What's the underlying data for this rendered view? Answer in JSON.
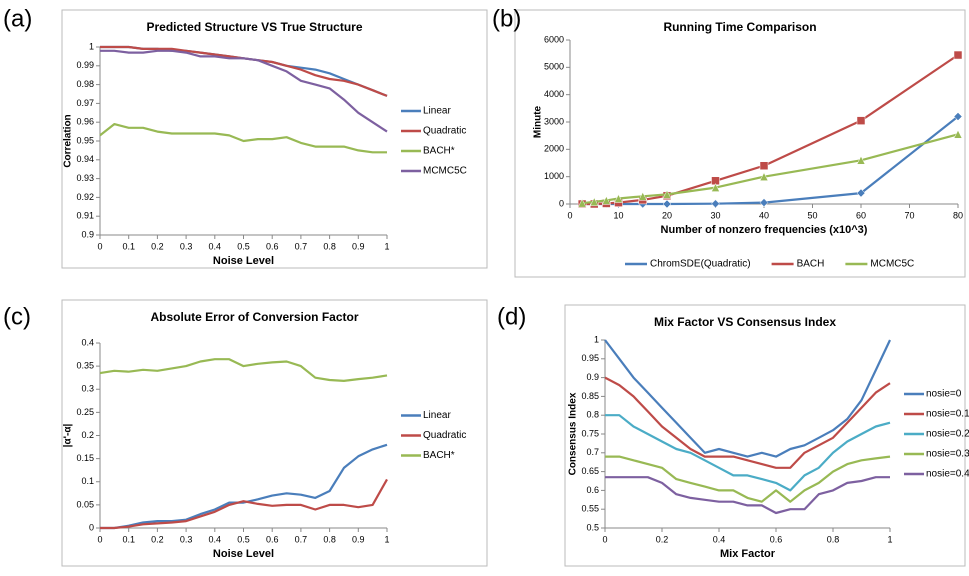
{
  "chart_data": [
    {
      "type": "line",
      "label": "(a)",
      "title": "Predicted Structure VS True Structure",
      "xlabel": "Noise Level",
      "ylabel": "Correlation",
      "legend": "right",
      "x": [
        0,
        0.05,
        0.1,
        0.15,
        0.2,
        0.25,
        0.3,
        0.35,
        0.4,
        0.45,
        0.5,
        0.55,
        0.6,
        0.65,
        0.7,
        0.75,
        0.8,
        0.85,
        0.9,
        0.95,
        1
      ],
      "xlim": [
        0,
        1
      ],
      "ylim": [
        0.9,
        1
      ],
      "xticks": [
        0,
        0.1,
        0.2,
        0.3,
        0.4,
        0.5,
        0.6,
        0.7,
        0.8,
        0.9,
        1
      ],
      "yticks": [
        0.9,
        0.91,
        0.92,
        0.93,
        0.94,
        0.95,
        0.96,
        0.97,
        0.98,
        0.99,
        1
      ],
      "series": [
        {
          "name": "Linear",
          "color": "#4a7ebb",
          "values": [
            1,
            1,
            1,
            0.999,
            0.999,
            0.998,
            0.998,
            0.997,
            0.996,
            0.995,
            0.994,
            0.993,
            0.992,
            0.99,
            0.989,
            0.988,
            0.986,
            0.983,
            0.98,
            0.977,
            0.974
          ]
        },
        {
          "name": "Quadratic",
          "color": "#be4b48",
          "values": [
            1,
            1,
            1,
            0.999,
            0.999,
            0.999,
            0.998,
            0.997,
            0.996,
            0.995,
            0.994,
            0.993,
            0.992,
            0.99,
            0.988,
            0.985,
            0.983,
            0.982,
            0.98,
            0.977,
            0.974
          ]
        },
        {
          "name": "BACH*",
          "color": "#98b954",
          "values": [
            0.953,
            0.959,
            0.957,
            0.957,
            0.955,
            0.954,
            0.954,
            0.954,
            0.954,
            0.953,
            0.95,
            0.951,
            0.951,
            0.952,
            0.949,
            0.947,
            0.947,
            0.947,
            0.945,
            0.944,
            0.944
          ]
        },
        {
          "name": "MCMC5C",
          "color": "#7d60a0",
          "values": [
            0.998,
            0.998,
            0.997,
            0.997,
            0.998,
            0.998,
            0.997,
            0.995,
            0.995,
            0.994,
            0.994,
            0.993,
            0.99,
            0.987,
            0.982,
            0.98,
            0.978,
            0.972,
            0.965,
            0.96,
            0.955
          ]
        }
      ]
    },
    {
      "type": "line",
      "label": "(b)",
      "title": "Running Time Comparison",
      "xlabel": "Number of nonzero frequencies (x10^3)",
      "ylabel": "Minute",
      "legend": "bottom",
      "markers": true,
      "x": [
        2.5,
        5,
        7.5,
        10,
        15,
        20,
        30,
        40,
        60,
        80
      ],
      "xlim": [
        0,
        80
      ],
      "ylim": [
        0,
        6000
      ],
      "xticks": [
        0,
        10,
        20,
        30,
        40,
        50,
        60,
        70,
        80
      ],
      "yticks": [
        0,
        1000,
        2000,
        3000,
        4000,
        5000,
        6000
      ],
      "series": [
        {
          "name": "ChromSDE(Quadratic)",
          "color": "#4a7ebb",
          "values": [
            0,
            0,
            0,
            0,
            0,
            0,
            10,
            50,
            400,
            3200
          ]
        },
        {
          "name": "BACH",
          "color": "#be4b48",
          "values": [
            0,
            0,
            20,
            50,
            150,
            300,
            850,
            1400,
            3050,
            5450
          ]
        },
        {
          "name": "MCMC5C",
          "color": "#98b954",
          "values": [
            30,
            80,
            130,
            200,
            280,
            350,
            600,
            1000,
            1600,
            2550
          ]
        }
      ]
    },
    {
      "type": "line",
      "label": "(c)",
      "title": "Absolute Error of Conversion Factor",
      "xlabel": "Noise Level",
      "ylabel": "|α'-α|",
      "legend": "right",
      "x": [
        0,
        0.05,
        0.1,
        0.15,
        0.2,
        0.25,
        0.3,
        0.35,
        0.4,
        0.45,
        0.5,
        0.55,
        0.6,
        0.65,
        0.7,
        0.75,
        0.8,
        0.85,
        0.9,
        0.95,
        1
      ],
      "xlim": [
        0,
        1
      ],
      "ylim": [
        0,
        0.4
      ],
      "xticks": [
        0,
        0.1,
        0.2,
        0.3,
        0.4,
        0.5,
        0.6,
        0.7,
        0.8,
        0.9,
        1
      ],
      "yticks": [
        0,
        0.05,
        0.1,
        0.15,
        0.2,
        0.25,
        0.3,
        0.35,
        0.4
      ],
      "series": [
        {
          "name": "Linear",
          "color": "#4a7ebb",
          "values": [
            0,
            0,
            0.005,
            0.012,
            0.015,
            0.015,
            0.018,
            0.03,
            0.04,
            0.055,
            0.055,
            0.062,
            0.07,
            0.075,
            0.072,
            0.065,
            0.08,
            0.13,
            0.155,
            0.17,
            0.18
          ]
        },
        {
          "name": "Quadratic",
          "color": "#be4b48",
          "values": [
            0,
            0,
            0.003,
            0.008,
            0.01,
            0.012,
            0.015,
            0.025,
            0.035,
            0.05,
            0.058,
            0.052,
            0.048,
            0.05,
            0.05,
            0.04,
            0.05,
            0.05,
            0.045,
            0.05,
            0.105
          ]
        },
        {
          "name": "BACH*",
          "color": "#98b954",
          "values": [
            0.335,
            0.34,
            0.338,
            0.342,
            0.34,
            0.345,
            0.35,
            0.36,
            0.365,
            0.365,
            0.35,
            0.355,
            0.358,
            0.36,
            0.35,
            0.325,
            0.32,
            0.318,
            0.322,
            0.325,
            0.33
          ]
        }
      ]
    },
    {
      "type": "line",
      "label": "(d)",
      "title": "Mix Factor VS Consensus Index",
      "xlabel": "Mix Factor",
      "ylabel": "Consensus Index",
      "legend": "right",
      "x": [
        0,
        0.05,
        0.1,
        0.15,
        0.2,
        0.25,
        0.3,
        0.35,
        0.4,
        0.45,
        0.5,
        0.55,
        0.6,
        0.65,
        0.7,
        0.75,
        0.8,
        0.85,
        0.9,
        0.95,
        1
      ],
      "xlim": [
        0,
        1
      ],
      "ylim": [
        0.5,
        1
      ],
      "xticks": [
        0,
        0.2,
        0.4,
        0.6,
        0.8,
        1
      ],
      "yticks": [
        0.5,
        0.55,
        0.6,
        0.65,
        0.7,
        0.75,
        0.8,
        0.85,
        0.9,
        0.95,
        1
      ],
      "series": [
        {
          "name": "nosie=0",
          "color": "#4a7ebb",
          "values": [
            1,
            0.95,
            0.9,
            0.86,
            0.82,
            0.78,
            0.74,
            0.7,
            0.71,
            0.7,
            0.69,
            0.7,
            0.69,
            0.71,
            0.72,
            0.74,
            0.76,
            0.79,
            0.84,
            0.92,
            1
          ]
        },
        {
          "name": "nosie=0.1",
          "color": "#be4b48",
          "values": [
            0.9,
            0.88,
            0.85,
            0.81,
            0.77,
            0.74,
            0.71,
            0.69,
            0.69,
            0.69,
            0.68,
            0.67,
            0.66,
            0.66,
            0.7,
            0.72,
            0.74,
            0.78,
            0.82,
            0.86,
            0.885
          ]
        },
        {
          "name": "nosie=0.2",
          "color": "#4bacc6",
          "values": [
            0.8,
            0.8,
            0.77,
            0.75,
            0.73,
            0.71,
            0.7,
            0.68,
            0.66,
            0.64,
            0.64,
            0.63,
            0.62,
            0.6,
            0.64,
            0.66,
            0.7,
            0.73,
            0.75,
            0.77,
            0.78
          ]
        },
        {
          "name": "nosie=0.3",
          "color": "#98b954",
          "values": [
            0.69,
            0.69,
            0.68,
            0.67,
            0.66,
            0.63,
            0.62,
            0.61,
            0.6,
            0.6,
            0.58,
            0.57,
            0.6,
            0.57,
            0.6,
            0.62,
            0.65,
            0.67,
            0.68,
            0.685,
            0.69
          ]
        },
        {
          "name": "nosie=0.4",
          "color": "#7d60a0",
          "values": [
            0.635,
            0.635,
            0.635,
            0.635,
            0.62,
            0.59,
            0.58,
            0.575,
            0.57,
            0.57,
            0.56,
            0.56,
            0.54,
            0.55,
            0.55,
            0.59,
            0.6,
            0.62,
            0.625,
            0.635,
            0.635
          ]
        }
      ]
    }
  ]
}
